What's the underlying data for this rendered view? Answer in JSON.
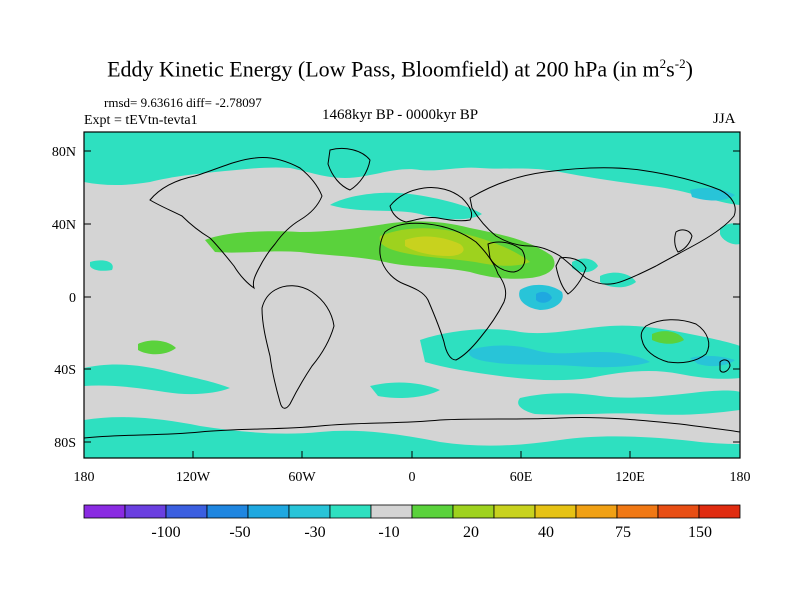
{
  "title": {
    "main": "Eddy Kinetic Energy (Low Pass, Bloomfield) at 200 hPa (in m",
    "sup1": "2",
    "mid": "s",
    "sup2": "-2",
    "end": ")"
  },
  "stats": {
    "rmsd": "rmsd= 9.63616 diff= -2.78097"
  },
  "expt": "Expt = tEVtn-tevta1",
  "period": "1468kyr BP - 0000kyr BP",
  "season": "JJA",
  "axes": {
    "lat_ticks": [
      "80N",
      "40N",
      "0",
      "40S",
      "80S"
    ],
    "lon_ticks": [
      "180",
      "120W",
      "60W",
      "0",
      "60E",
      "120E",
      "180"
    ]
  },
  "colorbar": {
    "colors": [
      "#8a2be2",
      "#6a3fe0",
      "#3b5fe0",
      "#1f86e0",
      "#1fa8e0",
      "#28c4d8",
      "#2ee0c0",
      "#d4d4d4",
      "#5ad23c",
      "#9ed21e",
      "#c8d21e",
      "#e6c214",
      "#f0a014",
      "#f07814",
      "#e84e14",
      "#e02c10"
    ],
    "labels": [
      "-100",
      "-50",
      "-30",
      "-10",
      "20",
      "40",
      "75",
      "150"
    ]
  },
  "map_colors": {
    "land_sea_bg": "#d4d4d4",
    "cyan": "#2ee0c0",
    "blue": "#28c4d8",
    "deep_blue": "#1fa8e0",
    "green": "#5ad23c",
    "yellow_green": "#9ed21e",
    "yellow": "#c8d21e",
    "coast": "#000000"
  }
}
